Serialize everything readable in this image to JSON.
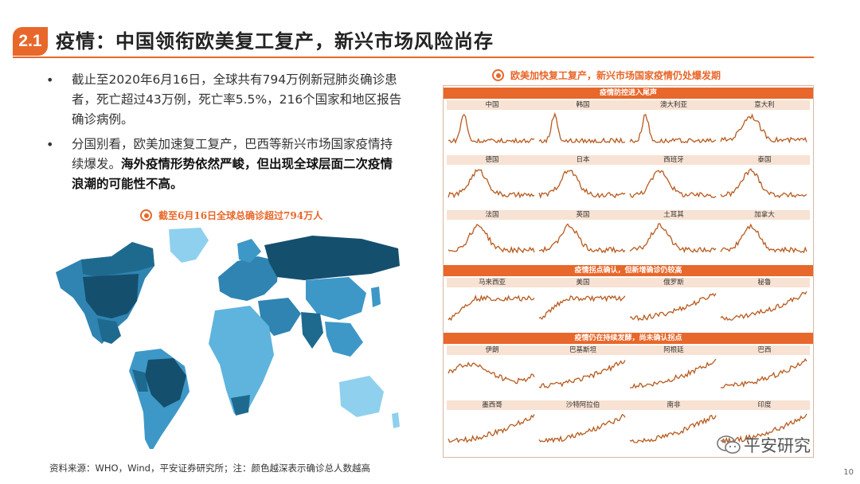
{
  "header": {
    "badge": "2.1",
    "title": "疫情：中国领衔欧美复工复产，新兴市场风险尚存"
  },
  "bullets": [
    {
      "text": "截止至2020年6月16日，全球共有794万例新冠肺炎确诊患者，死亡超过43万例，死亡率5.5%，216个国家和地区报告确诊病例。"
    },
    {
      "text": "分国别看，欧美加速复工复产，巴西等新兴市场国家疫情持续爆发。",
      "bold": "海外疫情形势依然严峻，但出现全球层面二次疫情浪潮的可能性不高。"
    }
  ],
  "map_caption": "截至6月16日全球总确诊超过794万人",
  "grid_caption": "欧美加快复工复产，新兴市场国家疫情仍处爆发期",
  "colors": {
    "accent": "#E8672A",
    "series": "#B85A1E",
    "map_dark": "#1E6A8E",
    "map_mid": "#3D98C7",
    "map_light": "#8FD0EE",
    "label_bg": "#F7E2D3"
  },
  "groups": [
    {
      "title": "疫情防控进入尾声",
      "countries": [
        "中国",
        "韩国",
        "澳大利亚",
        "意大利",
        "德国",
        "日本",
        "西班牙",
        "泰国",
        "法国",
        "英国",
        "土耳其",
        "加拿大"
      ]
    },
    {
      "title": "疫情拐点确认，但新增确诊仍较高",
      "countries": [
        "马来西亚",
        "美国",
        "俄罗斯",
        "秘鲁"
      ]
    },
    {
      "title": "疫情仍在持续发酵，尚未确认拐点",
      "countries": [
        "伊朗",
        "巴基斯坦",
        "阿根廷",
        "巴西",
        "墨西哥",
        "沙特阿拉伯",
        "南非",
        "印度"
      ]
    }
  ],
  "footer": "资料来源：WHO，Wind，平安证券研究所；注：颜色越深表示确诊总人数越高",
  "watermark": "平安研究",
  "page_number": "10"
}
